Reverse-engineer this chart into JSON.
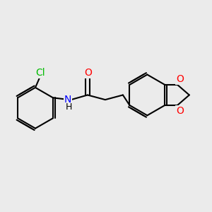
{
  "background_color": "#ebebeb",
  "bond_color": "#000000",
  "atom_colors": {
    "Cl": "#00bb00",
    "O": "#ff0000",
    "N": "#0000ff",
    "C": "#000000"
  },
  "bond_width": 1.5,
  "figsize": [
    3.0,
    3.0
  ],
  "dpi": 100
}
